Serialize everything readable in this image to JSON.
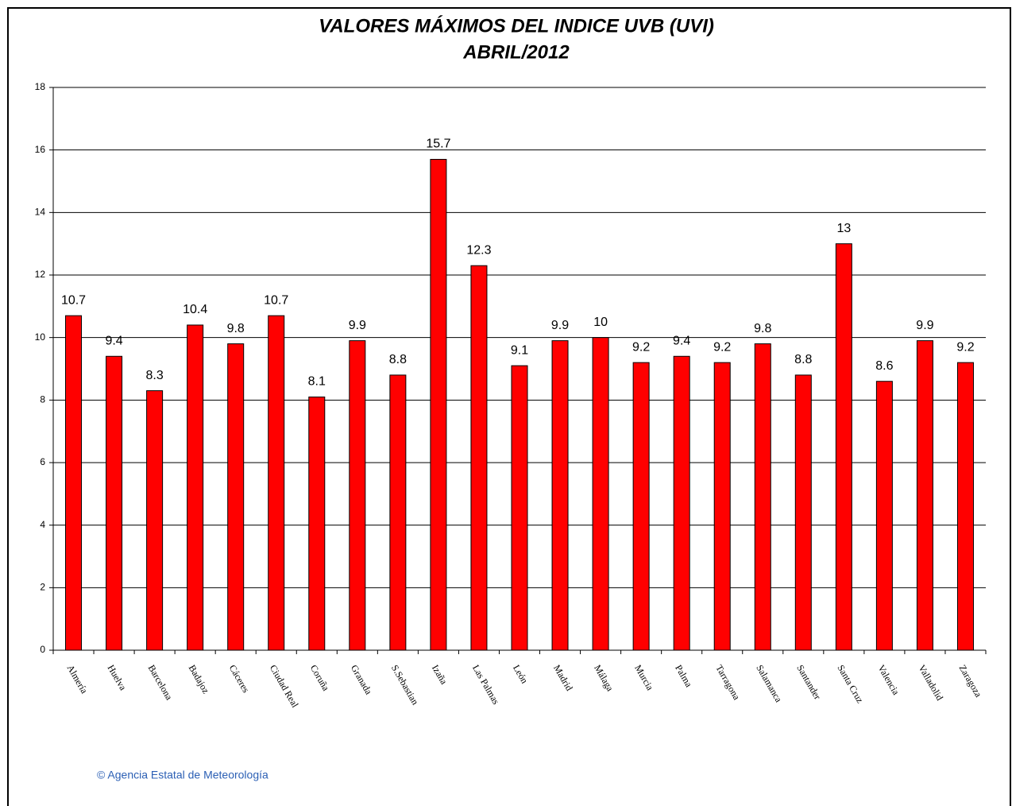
{
  "chart_data": {
    "type": "bar",
    "title": "VALORES MÁXIMOS DEL INDICE UVB (UVI)",
    "subtitle": "ABRIL/2012",
    "categories": [
      "Almería",
      "Huelva",
      "Barcelona",
      "Badajoz",
      "Cáceres",
      "Ciudad Real",
      "Coruña",
      "Granada",
      "S.Sebastian",
      "Izaña",
      "Las Palmas",
      "León",
      "Madrid",
      "Málaga",
      "Murcia",
      "Palma",
      "Tarragona",
      "Salamanca",
      "Santander",
      "Santa Cruz",
      "Valencia",
      "Valladolid",
      "Zaragoza"
    ],
    "values": [
      10.7,
      9.4,
      8.3,
      10.4,
      9.8,
      10.7,
      8.1,
      9.9,
      8.8,
      15.7,
      12.3,
      9.1,
      9.9,
      10,
      9.2,
      9.4,
      9.2,
      9.8,
      8.8,
      13,
      8.6,
      9.9,
      9.2
    ],
    "color": "#ff0000",
    "ylim": [
      0,
      18
    ],
    "yticks": [
      0,
      2,
      4,
      6,
      8,
      10,
      12,
      14,
      16,
      18
    ],
    "grid": true,
    "credit": "© Agencia Estatal de Meteorología"
  }
}
